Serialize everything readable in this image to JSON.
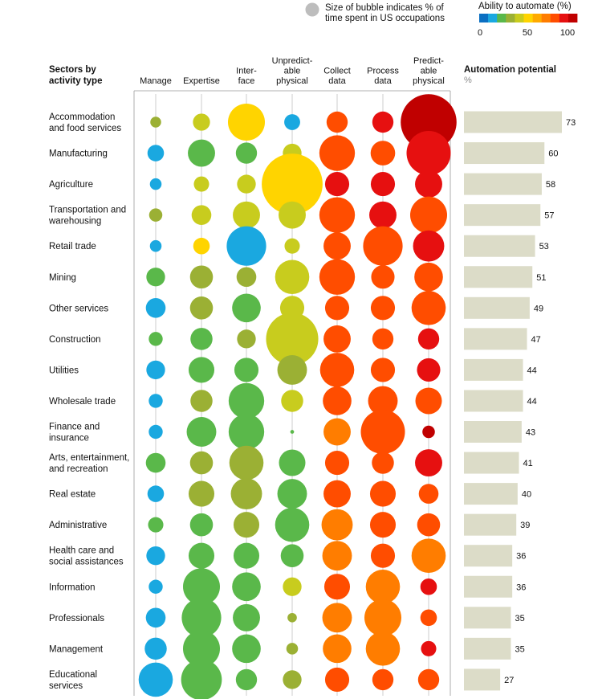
{
  "chart_data": {
    "type": "bubble-matrix-with-bar",
    "legend": {
      "size_note_lines": [
        "Size of bubble indicates % of",
        "time spent in US occupations"
      ],
      "color_title": "Ability to automate (%)",
      "color_ticks": [
        "0",
        "50",
        "100"
      ],
      "color_scale": [
        "#0a6fc2",
        "#1aa8e0",
        "#5ab84a",
        "#9bb034",
        "#c8cc1e",
        "#ffd400",
        "#ffaa00",
        "#ff7d00",
        "#ff4d00",
        "#e61010",
        "#c00000"
      ]
    },
    "row_header_lines": [
      "Sectors by",
      "activity type"
    ],
    "columns": [
      {
        "key": "manage",
        "label_lines": [
          "Manage"
        ]
      },
      {
        "key": "expertise",
        "label_lines": [
          "Expertise"
        ]
      },
      {
        "key": "interface",
        "label_lines": [
          "Inter-",
          "face"
        ]
      },
      {
        "key": "unpredictable_physical",
        "label_lines": [
          "Unpredict-",
          "able",
          "physical"
        ]
      },
      {
        "key": "collect_data",
        "label_lines": [
          "Collect",
          "data"
        ]
      },
      {
        "key": "process_data",
        "label_lines": [
          "Process",
          "data"
        ]
      },
      {
        "key": "predictable_physical",
        "label_lines": [
          "Predict-",
          "able",
          "physical"
        ]
      }
    ],
    "bar_title": "Automation potential",
    "bar_unit": "%",
    "xlim": [
      0,
      73
    ],
    "sectors": [
      {
        "name_lines": [
          "Accommodation",
          "and food services"
        ],
        "automation_potential": 73,
        "bubbles": [
          {
            "size": 1.2,
            "ability": 30
          },
          {
            "size": 3,
            "ability": 35
          },
          {
            "size": 14,
            "ability": 50
          },
          {
            "size": 2.6,
            "ability": 5
          },
          {
            "size": 4.6,
            "ability": 80
          },
          {
            "size": 4.6,
            "ability": 90
          },
          {
            "size": 32,
            "ability": 100
          }
        ]
      },
      {
        "name_lines": [
          "Manufacturing"
        ],
        "automation_potential": 60,
        "bubbles": [
          {
            "size": 2.8,
            "ability": 5
          },
          {
            "size": 7.6,
            "ability": 15
          },
          {
            "size": 4.6,
            "ability": 15
          },
          {
            "size": 3.6,
            "ability": 35
          },
          {
            "size": 13,
            "ability": 80
          },
          {
            "size": 6.2,
            "ability": 75
          },
          {
            "size": 20,
            "ability": 90
          }
        ]
      },
      {
        "name_lines": [
          "Agriculture"
        ],
        "automation_potential": 58,
        "bubbles": [
          {
            "size": 1.4,
            "ability": 5
          },
          {
            "size": 2.4,
            "ability": 35
          },
          {
            "size": 3.6,
            "ability": 35
          },
          {
            "size": 38,
            "ability": 50
          },
          {
            "size": 6,
            "ability": 90
          },
          {
            "size": 6,
            "ability": 90
          },
          {
            "size": 7.6,
            "ability": 90
          }
        ]
      },
      {
        "name_lines": [
          "Transportation and",
          "warehousing"
        ],
        "automation_potential": 57,
        "bubbles": [
          {
            "size": 1.8,
            "ability": 30
          },
          {
            "size": 4,
            "ability": 35
          },
          {
            "size": 7.6,
            "ability": 35
          },
          {
            "size": 7.6,
            "ability": 35
          },
          {
            "size": 13,
            "ability": 80
          },
          {
            "size": 7.6,
            "ability": 90
          },
          {
            "size": 14,
            "ability": 75
          }
        ]
      },
      {
        "name_lines": [
          "Retail trade"
        ],
        "automation_potential": 53,
        "bubbles": [
          {
            "size": 1.4,
            "ability": 5
          },
          {
            "size": 2.8,
            "ability": 50
          },
          {
            "size": 16,
            "ability": 5
          },
          {
            "size": 2.4,
            "ability": 35
          },
          {
            "size": 7.6,
            "ability": 80
          },
          {
            "size": 16,
            "ability": 80
          },
          {
            "size": 10,
            "ability": 90
          }
        ]
      },
      {
        "name_lines": [
          "Mining"
        ],
        "automation_potential": 51,
        "bubbles": [
          {
            "size": 3.6,
            "ability": 15
          },
          {
            "size": 5.4,
            "ability": 30
          },
          {
            "size": 4,
            "ability": 30
          },
          {
            "size": 12,
            "ability": 35
          },
          {
            "size": 13,
            "ability": 80
          },
          {
            "size": 5.6,
            "ability": 75
          },
          {
            "size": 8.4,
            "ability": 80
          }
        ]
      },
      {
        "name_lines": [
          "Other services"
        ],
        "automation_potential": 49,
        "bubbles": [
          {
            "size": 4,
            "ability": 5
          },
          {
            "size": 5.4,
            "ability": 30
          },
          {
            "size": 8.4,
            "ability": 15
          },
          {
            "size": 6,
            "ability": 35
          },
          {
            "size": 6,
            "ability": 75
          },
          {
            "size": 6,
            "ability": 75
          },
          {
            "size": 12,
            "ability": 80
          }
        ]
      },
      {
        "name_lines": [
          "Construction"
        ],
        "automation_potential": 47,
        "bubbles": [
          {
            "size": 2,
            "ability": 15
          },
          {
            "size": 5,
            "ability": 15
          },
          {
            "size": 3.6,
            "ability": 30
          },
          {
            "size": 28,
            "ability": 35
          },
          {
            "size": 7.6,
            "ability": 80
          },
          {
            "size": 4.6,
            "ability": 75
          },
          {
            "size": 4.6,
            "ability": 90
          }
        ]
      },
      {
        "name_lines": [
          "Utilities"
        ],
        "automation_potential": 44,
        "bubbles": [
          {
            "size": 3.6,
            "ability": 5
          },
          {
            "size": 6.8,
            "ability": 15
          },
          {
            "size": 6,
            "ability": 15
          },
          {
            "size": 9,
            "ability": 30
          },
          {
            "size": 12,
            "ability": 80
          },
          {
            "size": 6,
            "ability": 75
          },
          {
            "size": 5.6,
            "ability": 90
          }
        ]
      },
      {
        "name_lines": [
          "Wholesale trade"
        ],
        "automation_potential": 44,
        "bubbles": [
          {
            "size": 2,
            "ability": 5
          },
          {
            "size": 5,
            "ability": 30
          },
          {
            "size": 13,
            "ability": 15
          },
          {
            "size": 5,
            "ability": 35
          },
          {
            "size": 8.4,
            "ability": 80
          },
          {
            "size": 9,
            "ability": 75
          },
          {
            "size": 7.2,
            "ability": 80
          }
        ]
      },
      {
        "name_lines": [
          "Finance and",
          "insurance"
        ],
        "automation_potential": 43,
        "bubbles": [
          {
            "size": 2,
            "ability": 5
          },
          {
            "size": 9,
            "ability": 15
          },
          {
            "size": 13,
            "ability": 15
          },
          {
            "size": 0.15,
            "ability": 15
          },
          {
            "size": 7.6,
            "ability": 65
          },
          {
            "size": 20,
            "ability": 80
          },
          {
            "size": 1.6,
            "ability": 100
          }
        ]
      },
      {
        "name_lines": [
          "Arts, entertainment,",
          "and recreation"
        ],
        "automation_potential": 41,
        "bubbles": [
          {
            "size": 4,
            "ability": 15
          },
          {
            "size": 5.4,
            "ability": 30
          },
          {
            "size": 12,
            "ability": 30
          },
          {
            "size": 7.2,
            "ability": 15
          },
          {
            "size": 6,
            "ability": 75
          },
          {
            "size": 5,
            "ability": 80
          },
          {
            "size": 7.6,
            "ability": 90
          }
        ]
      },
      {
        "name_lines": [
          "Real estate"
        ],
        "automation_potential": 40,
        "bubbles": [
          {
            "size": 2.8,
            "ability": 5
          },
          {
            "size": 6.8,
            "ability": 30
          },
          {
            "size": 10,
            "ability": 30
          },
          {
            "size": 9,
            "ability": 15
          },
          {
            "size": 7.6,
            "ability": 75
          },
          {
            "size": 6.8,
            "ability": 80
          },
          {
            "size": 4,
            "ability": 80
          }
        ]
      },
      {
        "name_lines": [
          "Administrative"
        ],
        "automation_potential": 39,
        "bubbles": [
          {
            "size": 2.4,
            "ability": 15
          },
          {
            "size": 5.4,
            "ability": 15
          },
          {
            "size": 6.8,
            "ability": 30
          },
          {
            "size": 12,
            "ability": 15
          },
          {
            "size": 10,
            "ability": 65
          },
          {
            "size": 6.8,
            "ability": 75
          },
          {
            "size": 5.4,
            "ability": 80
          }
        ]
      },
      {
        "name_lines": [
          "Health care and",
          "social assistances"
        ],
        "automation_potential": 36,
        "bubbles": [
          {
            "size": 3.6,
            "ability": 5
          },
          {
            "size": 6.8,
            "ability": 15
          },
          {
            "size": 6.8,
            "ability": 15
          },
          {
            "size": 5.4,
            "ability": 15
          },
          {
            "size": 9,
            "ability": 65
          },
          {
            "size": 6,
            "ability": 80
          },
          {
            "size": 12,
            "ability": 65
          }
        ]
      },
      {
        "name_lines": [
          "Information"
        ],
        "automation_potential": 36,
        "bubbles": [
          {
            "size": 2,
            "ability": 5
          },
          {
            "size": 14,
            "ability": 15
          },
          {
            "size": 8.4,
            "ability": 15
          },
          {
            "size": 3.6,
            "ability": 35
          },
          {
            "size": 6.8,
            "ability": 75
          },
          {
            "size": 12,
            "ability": 65
          },
          {
            "size": 2.8,
            "ability": 90
          }
        ]
      },
      {
        "name_lines": [
          "Professionals"
        ],
        "automation_potential": 35,
        "bubbles": [
          {
            "size": 4,
            "ability": 5
          },
          {
            "size": 16,
            "ability": 15
          },
          {
            "size": 7.6,
            "ability": 15
          },
          {
            "size": 0.9,
            "ability": 30
          },
          {
            "size": 9,
            "ability": 65
          },
          {
            "size": 14,
            "ability": 65
          },
          {
            "size": 2.8,
            "ability": 80
          }
        ]
      },
      {
        "name_lines": [
          "Management"
        ],
        "automation_potential": 35,
        "bubbles": [
          {
            "size": 5,
            "ability": 5
          },
          {
            "size": 14,
            "ability": 15
          },
          {
            "size": 8.4,
            "ability": 15
          },
          {
            "size": 1.4,
            "ability": 30
          },
          {
            "size": 8.4,
            "ability": 65
          },
          {
            "size": 12,
            "ability": 65
          },
          {
            "size": 2.4,
            "ability": 90
          }
        ]
      },
      {
        "name_lines": [
          "Educational",
          "services"
        ],
        "automation_potential": 27,
        "bubbles": [
          {
            "size": 12,
            "ability": 5
          },
          {
            "size": 17,
            "ability": 15
          },
          {
            "size": 4.6,
            "ability": 15
          },
          {
            "size": 3.6,
            "ability": 30
          },
          {
            "size": 6,
            "ability": 75
          },
          {
            "size": 4.6,
            "ability": 75
          },
          {
            "size": 4.6,
            "ability": 75
          }
        ]
      }
    ]
  }
}
